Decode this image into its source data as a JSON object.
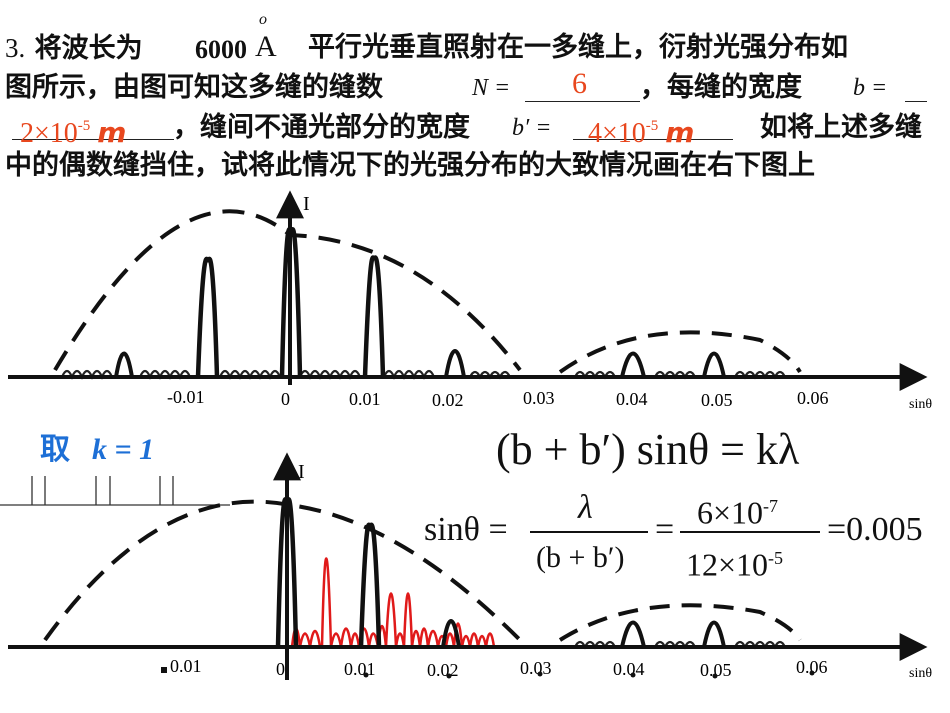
{
  "question": {
    "number": "3.",
    "line1_pre": "将波长为",
    "wavelength_value": "6000",
    "angstrom": "A",
    "angstrom_ring": "o",
    "line1_post": "平行光垂直照射在一多缝上，衍射光强分布如",
    "line2_pre": "图所示，由图可知这多缝的缝数",
    "N_label": "N =",
    "line2_mid": "，每缝的宽度",
    "b_label": "b =",
    "line3_mid": "，缝间不通光部分的宽度",
    "bp_label": "b′ =",
    "line3_post": "如将上述多缝",
    "line4": "中的偶数缝挡住，试将此情况下的光强分布的大致情况画在右下图上"
  },
  "answers": {
    "N": "6",
    "b_mantissa": "2×10",
    "b_exp": "-5",
    "b_unit": "m",
    "bp_mantissa": "4×10",
    "bp_exp": "-5",
    "bp_unit": "m"
  },
  "graph_top": {
    "y_label": "I",
    "x_label": "sinθ",
    "ticks": [
      "-0.01",
      "0",
      "0.01",
      "0.02",
      "0.03",
      "0.04",
      "0.05",
      "0.06"
    ]
  },
  "graph_bottom": {
    "y_label": "I",
    "x_label": "sinθ",
    "ticks": [
      "0.01",
      "0",
      "0.01",
      "0.02",
      "0.03",
      "0.04",
      "0.05",
      "0.06"
    ]
  },
  "annotation": {
    "take": "取",
    "k_eq": "k = 1"
  },
  "formulas": {
    "grating_eq": "(b + b′) sinθ = kλ",
    "sin_lhs": "sinθ =",
    "lambda": "λ",
    "bbp": "(b + b′)",
    "eq": "=",
    "num_mant": "6×10",
    "num_exp": "-7",
    "den_mant": "12×10",
    "den_exp": "-5",
    "result": "=0.005"
  },
  "colors": {
    "answer": "#e8471e",
    "annotation": "#1d6fd6",
    "red_curve": "#e01a1a",
    "ink": "#111111"
  }
}
